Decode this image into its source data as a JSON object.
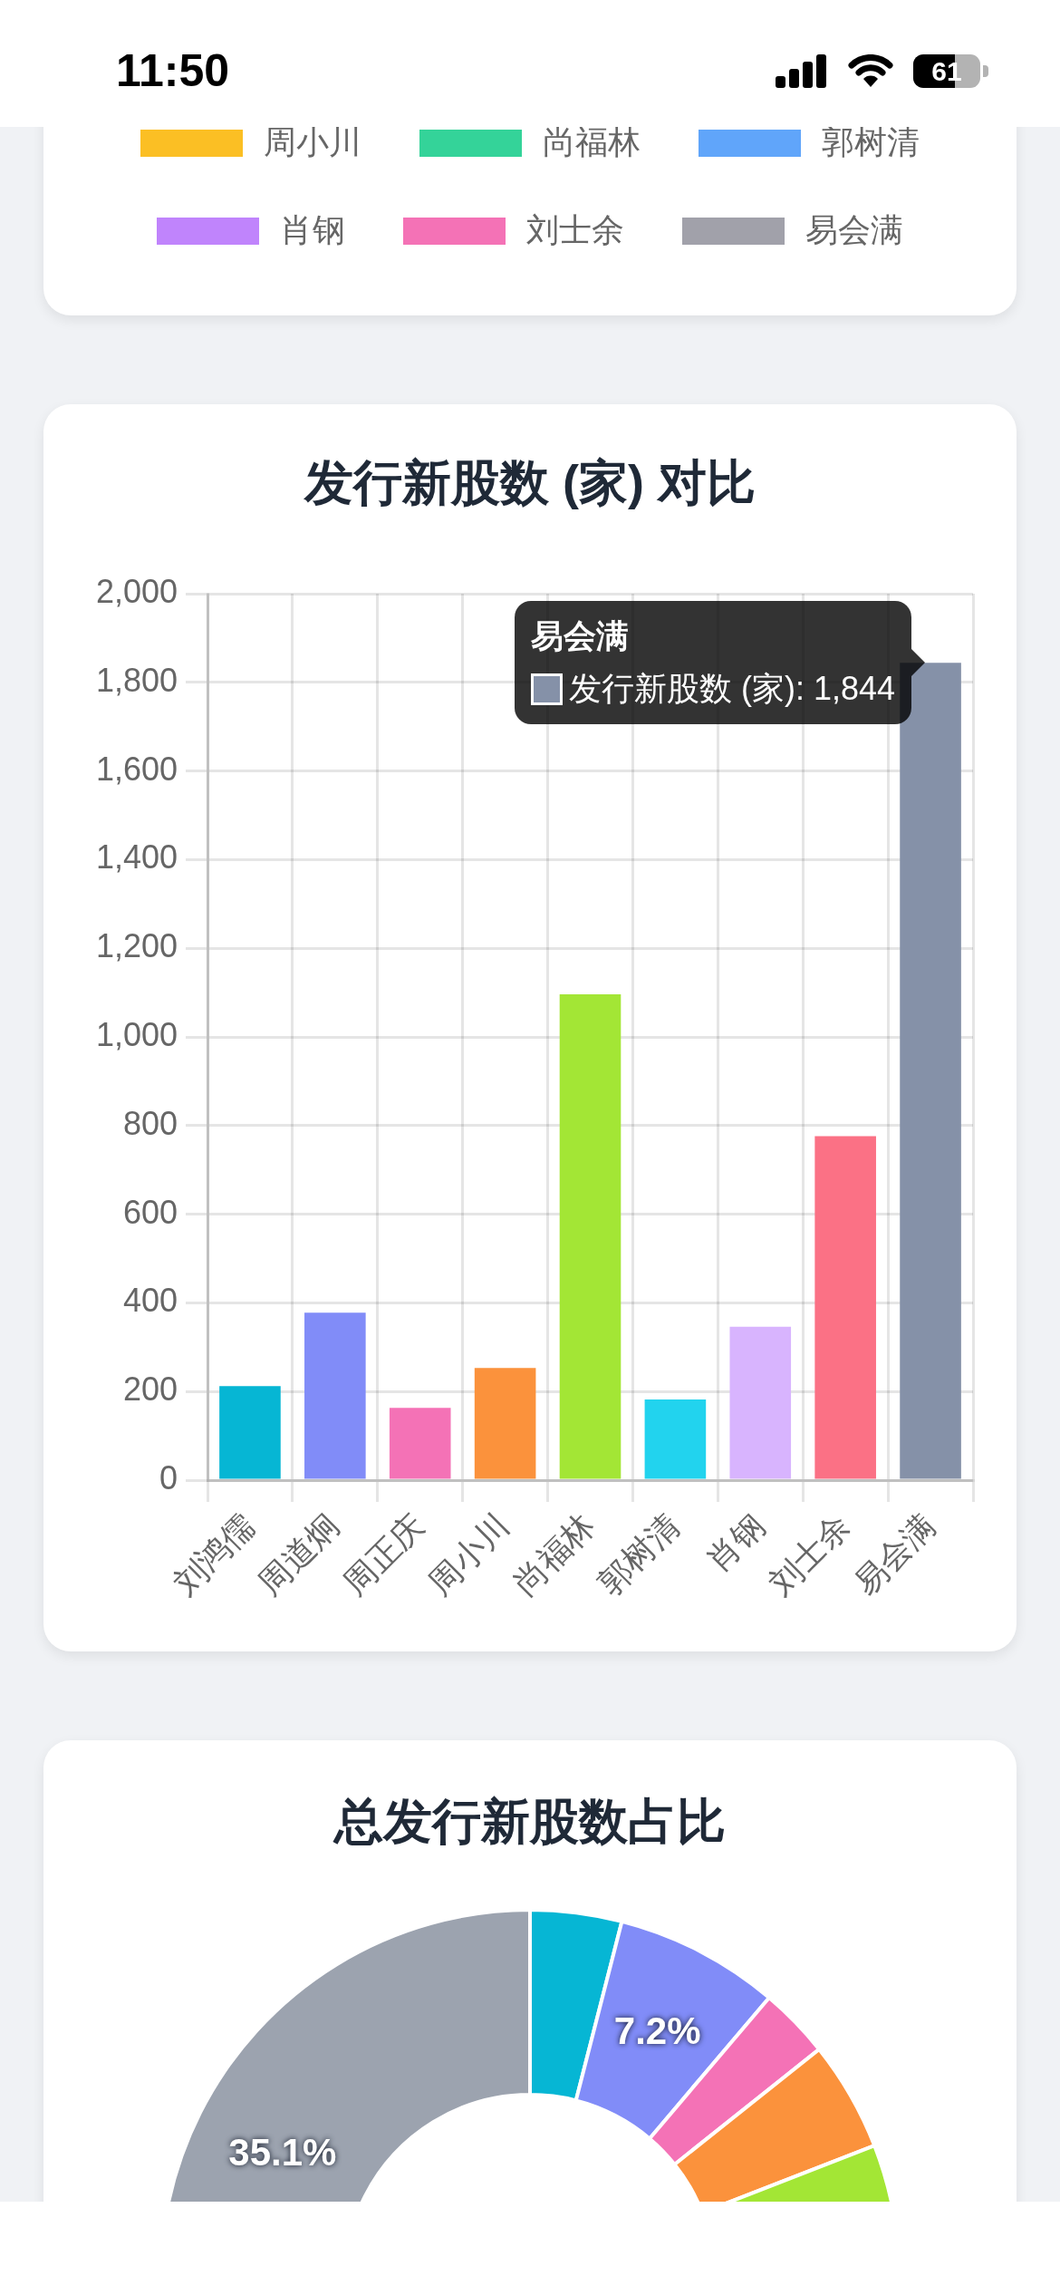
{
  "chart_data": [
    {
      "type": "other",
      "annotations": [
        "11:50",
        "61"
      ]
    },
    {
      "type": "other",
      "legend": "bottom",
      "series": [
        {
          "name": "周小川",
          "color": "#fbbf24"
        },
        {
          "name": "尚福林",
          "color": "#34d399"
        },
        {
          "name": "郭树清",
          "color": "#60a5fa"
        },
        {
          "name": "肖钢",
          "color": "#c084fc"
        },
        {
          "name": "刘士余",
          "color": "#f472b6"
        },
        {
          "name": "易会满",
          "color": "#a1a1aa"
        }
      ]
    },
    {
      "type": "bar",
      "title": "发行新股数 (家) 对比",
      "categories": [
        "刘鸿儒",
        "周道炯",
        "周正庆",
        "周小川",
        "尚福林",
        "郭树清",
        "肖钢",
        "刘士余",
        "易会满"
      ],
      "values": [
        212,
        378,
        163,
        253,
        1096,
        182,
        346,
        776,
        1844
      ],
      "colors": [
        "#06b6d4",
        "#818cf8",
        "#f472b6",
        "#fb923c",
        "#a3e635",
        "#22d3ee",
        "#d8b4fe",
        "#fb7185",
        "#8591a8"
      ],
      "ylim": [
        0,
        2000
      ],
      "yticks": [
        0,
        200,
        400,
        600,
        800,
        {
          "value": 1000,
          "label": "1,000"
        },
        {
          "value": 1200,
          "label": "1,200"
        },
        {
          "value": 1400,
          "label": "1,400"
        },
        {
          "value": 1600,
          "label": "1,600"
        },
        {
          "value": 1800,
          "label": "1,800"
        },
        {
          "value": 2000,
          "label": "2,000"
        }
      ],
      "grid": true,
      "annotations": [
        "易会满",
        {
          "text": "发行新股数 (家): 1,844",
          "x": "易会满",
          "y": 1844
        }
      ]
    },
    {
      "type": "donut",
      "title": "总发行新股数占比",
      "categories": [
        null,
        null,
        null,
        null,
        null,
        null,
        null,
        null,
        null
      ],
      "values": [
        4.0,
        7.2,
        3.1,
        4.8,
        20.9,
        null,
        null,
        null,
        35.1
      ],
      "colors": [
        "#06b6d4",
        "#818cf8",
        "#f472b6",
        "#fb923c",
        "#a3e635",
        null,
        null,
        null,
        "#9ca3af"
      ],
      "value_labels": [
        null,
        "7.2%",
        null,
        null,
        null,
        null,
        null,
        null,
        "35.1%"
      ]
    }
  ]
}
